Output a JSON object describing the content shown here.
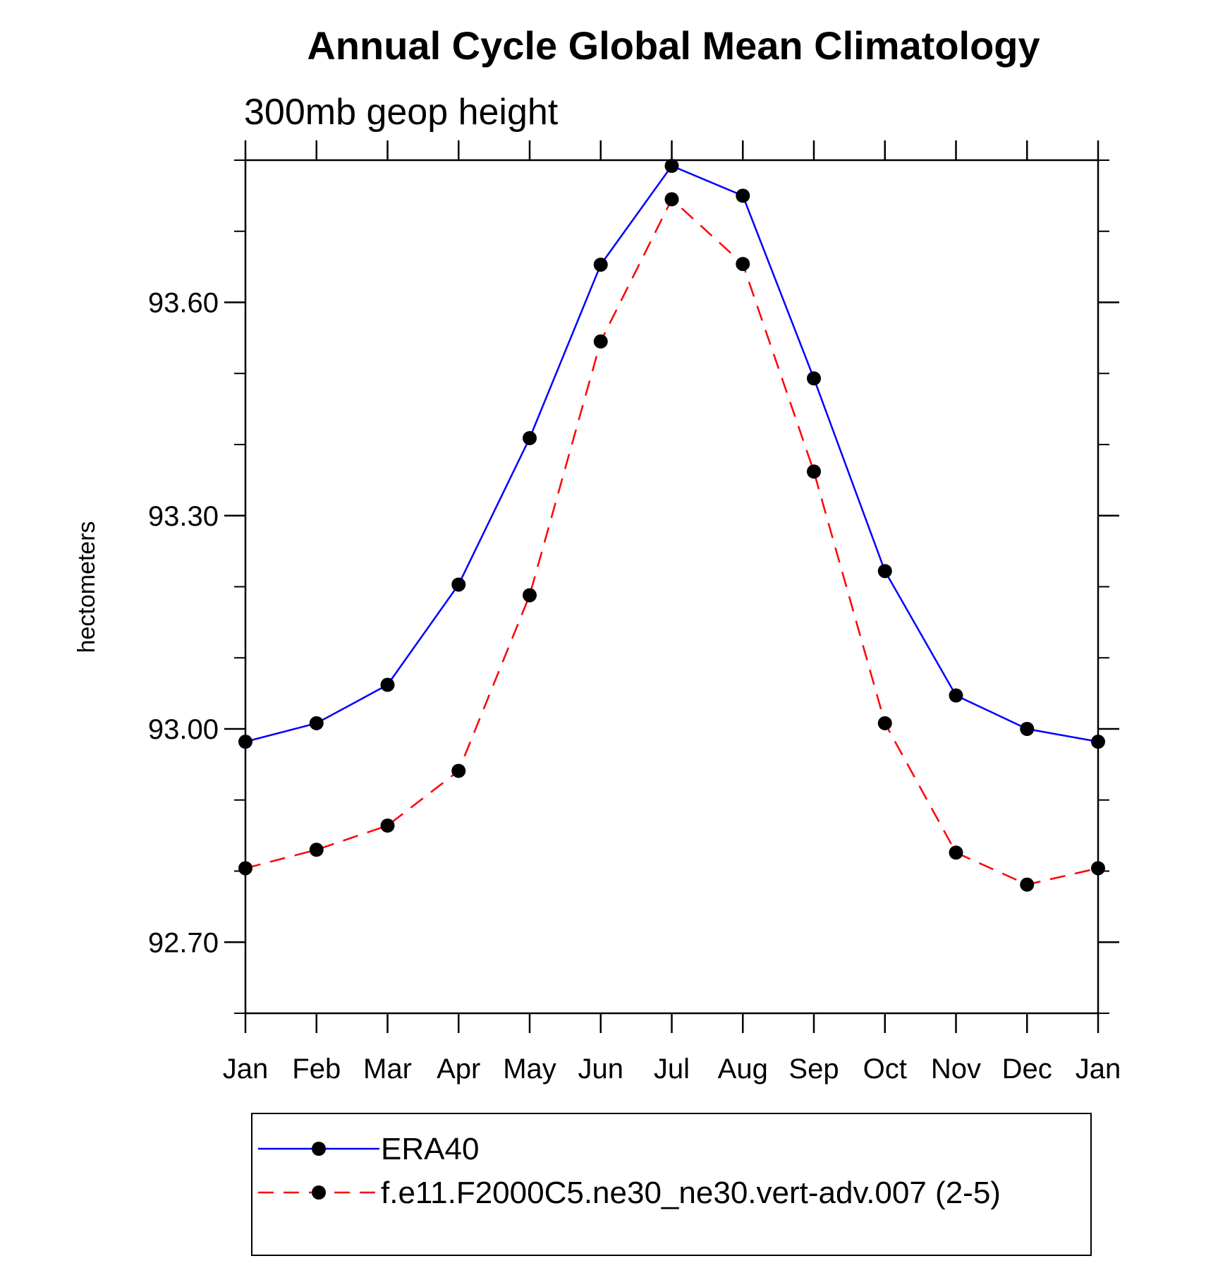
{
  "chart_data": {
    "type": "line",
    "title": "Annual Cycle Global Mean Climatology",
    "subtitle": "300mb geop height",
    "xlabel": "",
    "ylabel": "hectometers",
    "categories": [
      "Jan",
      "Feb",
      "Mar",
      "Apr",
      "May",
      "Jun",
      "Jul",
      "Aug",
      "Sep",
      "Oct",
      "Nov",
      "Dec",
      "Jan"
    ],
    "yticks": [
      92.7,
      93.0,
      93.3,
      93.6
    ],
    "ytick_labels": [
      "92.70",
      "93.00",
      "93.30",
      "93.60"
    ],
    "ylim": [
      92.6,
      93.8
    ],
    "grid": false,
    "legend_position": "bottom",
    "series": [
      {
        "name": "ERA40",
        "color": "#0000ff",
        "dash": "solid",
        "values": [
          92.982,
          93.008,
          93.062,
          93.203,
          93.409,
          93.653,
          93.792,
          93.75,
          93.493,
          93.222,
          93.047,
          93.0,
          92.982
        ]
      },
      {
        "name": "f.e11.F2000C5.ne30_ne30.vert-adv.007 (2-5)",
        "color": "#ff0000",
        "dash": "dashed",
        "values": [
          92.804,
          92.83,
          92.864,
          92.941,
          93.188,
          93.545,
          93.745,
          93.654,
          93.362,
          93.008,
          92.826,
          92.781,
          92.804
        ]
      }
    ]
  }
}
